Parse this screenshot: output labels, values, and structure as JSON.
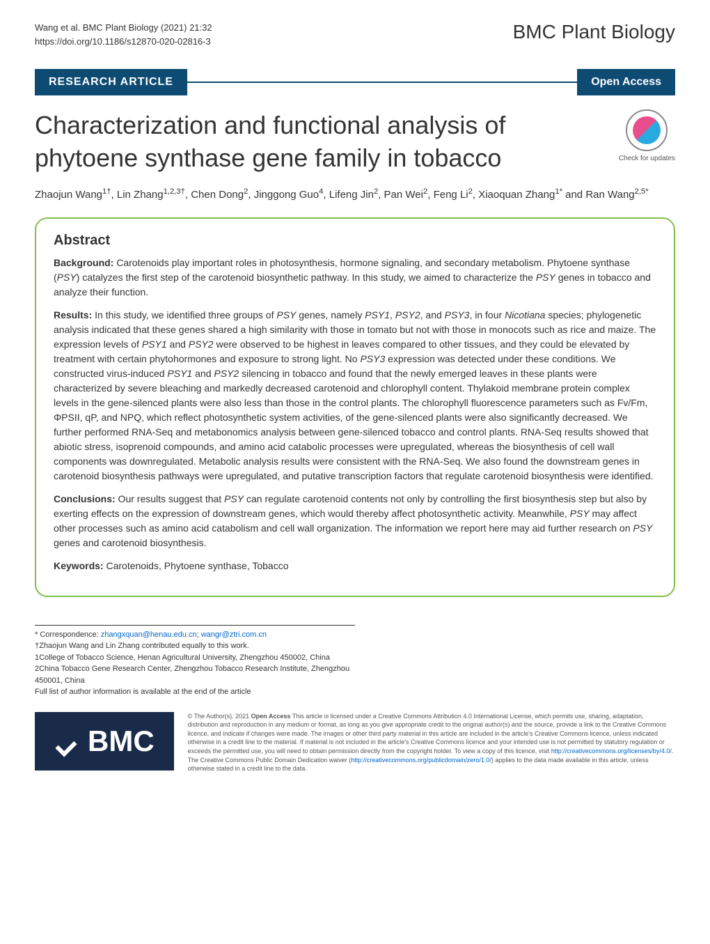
{
  "header": {
    "citation_line1": "Wang et al. BMC Plant Biology     (2021) 21:32",
    "citation_line2": "https://doi.org/10.1186/s12870-020-02816-3",
    "journal_name": "BMC Plant Biology"
  },
  "banner": {
    "article_type": "RESEARCH ARTICLE",
    "access_label": "Open Access"
  },
  "article": {
    "title": "Characterization and functional analysis of phytoene synthase gene family in tobacco",
    "authors_html": "Zhaojun Wang<sup>1†</sup>, Lin Zhang<sup>1,2,3†</sup>, Chen Dong<sup>2</sup>, Jinggong Guo<sup>4</sup>, Lifeng Jin<sup>2</sup>, Pan Wei<sup>2</sup>, Feng Li<sup>2</sup>, Xiaoquan Zhang<sup>1*</sup> and Ran Wang<sup>2,5*</sup>"
  },
  "crossmark": {
    "label": "Check for updates"
  },
  "abstract": {
    "heading": "Abstract",
    "background_label": "Background:",
    "background_text": " Carotenoids play important roles in photosynthesis, hormone signaling, and secondary metabolism. Phytoene synthase (PSY) catalyzes the first step of the carotenoid biosynthetic pathway. In this study, we aimed to characterize the PSY genes in tobacco and analyze their function.",
    "results_label": "Results:",
    "results_text": " In this study, we identified three groups of PSY genes, namely PSY1, PSY2, and PSY3, in four Nicotiana species; phylogenetic analysis indicated that these genes shared a high similarity with those in tomato but not with those in monocots such as rice and maize. The expression levels of PSY1 and PSY2 were observed to be highest in leaves compared to other tissues, and they could be elevated by treatment with certain phytohormones and exposure to strong light. No PSY3 expression was detected under these conditions. We constructed virus-induced PSY1 and PSY2 silencing in tobacco and found that the newly emerged leaves in these plants were characterized by severe bleaching and markedly decreased carotenoid and chlorophyll content. Thylakoid membrane protein complex levels in the gene-silenced plants were also less than those in the control plants. The chlorophyll fluorescence parameters such as Fv/Fm, ΦPSII, qP, and NPQ, which reflect photosynthetic system activities, of the gene-silenced plants were also significantly decreased. We further performed RNA-Seq and metabonomics analysis between gene-silenced tobacco and control plants. RNA-Seq results showed that abiotic stress, isoprenoid compounds, and amino acid catabolic processes were upregulated, whereas the biosynthesis of cell wall components was downregulated. Metabolic analysis results were consistent with the RNA-Seq. We also found the downstream genes in carotenoid biosynthesis pathways were upregulated, and putative transcription factors that regulate carotenoid biosynthesis were identified.",
    "conclusions_label": "Conclusions:",
    "conclusions_text": " Our results suggest that PSY can regulate carotenoid contents not only by controlling the first biosynthesis step but also by exerting effects on the expression of downstream genes, which would thereby affect photosynthetic activity. Meanwhile, PSY may affect other processes such as amino acid catabolism and cell wall organization. The information we report here may aid further research on PSY genes and carotenoid biosynthesis.",
    "keywords_label": "Keywords:",
    "keywords_text": " Carotenoids, Phytoene synthase, Tobacco"
  },
  "correspondence": {
    "line1_prefix": "* Correspondence: ",
    "email1": "zhangxquan@henau.edu.cn",
    "separator": "; ",
    "email2": "wangr@ztri.com.cn",
    "line2": "†Zhaojun Wang and Lin Zhang contributed equally to this work.",
    "line3": "1College of Tobacco Science, Henan Agricultural University, Zhengzhou 450002, China",
    "line4": "2China Tobacco Gene Research Center, Zhengzhou Tobacco Research Institute, Zhengzhou 450001, China",
    "line5": "Full list of author information is available at the end of the article"
  },
  "bmc": {
    "logo_text": "BMC"
  },
  "license": {
    "text_part1": "© The Author(s). 2021 ",
    "open_access_bold": "Open Access",
    "text_part2": " This article is licensed under a Creative Commons Attribution 4.0 International License, which permits use, sharing, adaptation, distribution and reproduction in any medium or format, as long as you give appropriate credit to the original author(s) and the source, provide a link to the Creative Commons licence, and indicate if changes were made. The images or other third party material in this article are included in the article's Creative Commons licence, unless indicated otherwise in a credit line to the material. If material is not included in the article's Creative Commons licence and your intended use is not permitted by statutory regulation or exceeds the permitted use, you will need to obtain permission directly from the copyright holder. To view a copy of this licence, visit ",
    "link1": "http://creativecommons.org/licenses/by/4.0/",
    "text_part3": ". The Creative Commons Public Domain Dedication waiver (",
    "link2": "http://creativecommons.org/publicdomain/zero/1.0/",
    "text_part4": ") applies to the data made available in this article, unless otherwise stated in a credit line to the data."
  },
  "styling": {
    "banner_bg": "#0e4b73",
    "abstract_border": "#7fbf4d",
    "bmc_bg": "#1a2b4a",
    "link_color": "#0066cc",
    "title_fontsize": 36,
    "journal_fontsize": 28,
    "body_fontsize": 14,
    "license_fontsize": 9
  }
}
